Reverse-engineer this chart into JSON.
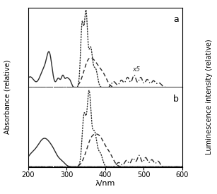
{
  "xlim": [
    200,
    600
  ],
  "xlabel": "λ/nm",
  "ylabel_left": "Absorbance (relative)",
  "ylabel_right": "Luminescence intensity (relative)",
  "panel_a_label": "a",
  "panel_b_label": "b",
  "x5_label": "x5",
  "background_color": "#ffffff",
  "line_color": "#2a2a2a",
  "figsize": [
    3.07,
    2.75
  ],
  "dpi": 100
}
